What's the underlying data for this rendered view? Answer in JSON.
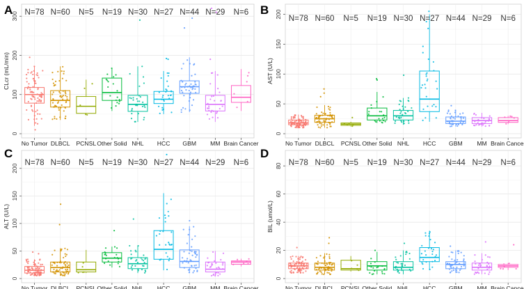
{
  "chart_data": [
    {
      "type": "boxplot",
      "panel": "A",
      "ylabel": "CLcr (mL/min)",
      "ylim": [
        0,
        320
      ],
      "yticks": [
        0,
        100,
        200,
        300
      ],
      "categories": [
        "No Tumor",
        "DLBCL",
        "PCNSL",
        "Other Solid",
        "NHL",
        "HCC",
        "GBM",
        "MM",
        "Brain Cancer"
      ],
      "n_labels": [
        "N=78",
        "N=60",
        "N=5",
        "N=19",
        "N=30",
        "N=27",
        "N=44",
        "N=29",
        "N=6"
      ],
      "n": [
        78,
        60,
        5,
        19,
        30,
        27,
        44,
        29,
        6
      ],
      "boxes": [
        {
          "min": 20,
          "q1": 78,
          "median": 100,
          "q3": 118,
          "max": 172
        },
        {
          "min": 35,
          "q1": 68,
          "median": 85,
          "q3": 110,
          "max": 172
        },
        {
          "min": 48,
          "q1": 52,
          "median": 70,
          "q3": 95,
          "max": 138
        },
        {
          "min": 58,
          "q1": 85,
          "median": 105,
          "q3": 142,
          "max": 168
        },
        {
          "min": 30,
          "q1": 57,
          "median": 75,
          "q3": 98,
          "max": 172
        },
        {
          "min": 50,
          "q1": 77,
          "median": 88,
          "q3": 108,
          "max": 160
        },
        {
          "min": 55,
          "q1": 103,
          "median": 120,
          "q3": 135,
          "max": 195
        },
        {
          "min": 30,
          "q1": 58,
          "median": 75,
          "q3": 98,
          "max": 160
        },
        {
          "min": 58,
          "q1": 80,
          "median": 93,
          "q3": 123,
          "max": 165
        }
      ],
      "outliers": [
        [
          10,
          195
        ],
        [],
        [],
        [],
        [
          290
        ],
        [
          190,
          192
        ],
        [
          270,
          295
        ],
        [
          310,
          320,
          190
        ],
        []
      ]
    },
    {
      "type": "boxplot",
      "panel": "B",
      "ylabel": "AST (U/L)",
      "ylim": [
        0,
        210
      ],
      "yticks": [
        0,
        50,
        100,
        150,
        200
      ],
      "categories": [
        "No Tumor",
        "DLBCL",
        "PCNSL",
        "Other Solid",
        "NHL",
        "HCC",
        "GBM",
        "MM",
        "Brain Cancer"
      ],
      "n_labels": [
        "N=78",
        "N=60",
        "N=5",
        "N=19",
        "N=30",
        "N=27",
        "N=44",
        "N=29",
        "N=6"
      ],
      "n": [
        78,
        60,
        5,
        19,
        30,
        27,
        44,
        29,
        6
      ],
      "boxes": [
        {
          "min": 10,
          "q1": 15,
          "median": 18,
          "q3": 23,
          "max": 32
        },
        {
          "min": 10,
          "q1": 19,
          "median": 25,
          "q3": 31,
          "max": 48
        },
        {
          "min": 12,
          "q1": 14,
          "median": 16,
          "q3": 18,
          "max": 20
        },
        {
          "min": 18,
          "q1": 23,
          "median": 30,
          "q3": 43,
          "max": 70
        },
        {
          "min": 15,
          "q1": 23,
          "median": 30,
          "q3": 39,
          "max": 60
        },
        {
          "min": 20,
          "q1": 37,
          "median": 58,
          "q3": 105,
          "max": 200
        },
        {
          "min": 12,
          "q1": 17,
          "median": 21,
          "q3": 28,
          "max": 40
        },
        {
          "min": 12,
          "q1": 17,
          "median": 22,
          "q3": 27,
          "max": 35
        },
        {
          "min": 16,
          "q1": 19,
          "median": 22,
          "q3": 27,
          "max": 30
        }
      ],
      "outliers": [
        [],
        [
          62,
          68,
          75
        ],
        [
          27
        ],
        [
          90,
          92
        ],
        [
          98
        ],
        [
          205
        ],
        [
          47
        ],
        [],
        []
      ]
    },
    {
      "type": "boxplot",
      "panel": "C",
      "ylabel": "ALT (U/L)",
      "ylim": [
        0,
        225
      ],
      "yticks": [
        0,
        50,
        100,
        150,
        200
      ],
      "categories": [
        "No Tumor",
        "DLBCL",
        "PCNSL",
        "Other Solid",
        "NHL",
        "HCC",
        "GBM",
        "MM",
        "Brain Cancer"
      ],
      "n_labels": [
        "N=78",
        "N=60",
        "N=5",
        "N=19",
        "N=30",
        "N=27",
        "N=44",
        "N=29",
        "N=6"
      ],
      "n": [
        78,
        60,
        5,
        19,
        30,
        27,
        44,
        29,
        6
      ],
      "boxes": [
        {
          "min": 5,
          "q1": 10,
          "median": 15,
          "q3": 22,
          "max": 35
        },
        {
          "min": 5,
          "q1": 12,
          "median": 20,
          "q3": 30,
          "max": 55
        },
        {
          "min": 10,
          "q1": 12,
          "median": 16,
          "q3": 30,
          "max": 52
        },
        {
          "min": 20,
          "q1": 30,
          "median": 37,
          "q3": 47,
          "max": 58
        },
        {
          "min": 10,
          "q1": 18,
          "median": 27,
          "q3": 38,
          "max": 60
        },
        {
          "min": 15,
          "q1": 35,
          "median": 53,
          "q3": 87,
          "max": 155
        },
        {
          "min": 10,
          "q1": 20,
          "median": 31,
          "q3": 52,
          "max": 95
        },
        {
          "min": 5,
          "q1": 12,
          "median": 17,
          "q3": 30,
          "max": 50
        },
        {
          "min": 22,
          "q1": 26,
          "median": 30,
          "q3": 32,
          "max": 36
        }
      ],
      "outliers": [
        [
          45,
          48
        ],
        [
          98,
          135
        ],
        [],
        [
          87
        ],
        [
          108
        ],
        [
          225
        ],
        [
          105
        ],
        [],
        []
      ]
    },
    {
      "type": "boxplot",
      "panel": "D",
      "ylabel": "BIL (umol/L)",
      "ylim": [
        0,
        88
      ],
      "yticks": [
        0,
        20,
        40,
        60,
        80
      ],
      "categories": [
        "No Tumor",
        "DLBCL",
        "PCNSL",
        "Other Solid",
        "NHL",
        "HCC",
        "GBM",
        "MM",
        "Brain Cancer"
      ],
      "n_labels": [
        "N=78",
        "N=60",
        "N=5",
        "N=19",
        "N=30",
        "N=27",
        "N=44",
        "N=29",
        "N=6"
      ],
      "n": [
        78,
        60,
        5,
        19,
        30,
        27,
        44,
        29,
        6
      ],
      "boxes": [
        {
          "min": 4,
          "q1": 7,
          "median": 9,
          "q3": 11,
          "max": 16
        },
        {
          "min": 3,
          "q1": 6,
          "median": 8,
          "q3": 11,
          "max": 18
        },
        {
          "min": 5,
          "q1": 6,
          "median": 7,
          "q3": 13,
          "max": 16
        },
        {
          "min": 3,
          "q1": 6,
          "median": 9,
          "q3": 12,
          "max": 19
        },
        {
          "min": 3,
          "q1": 6,
          "median": 8,
          "q3": 12,
          "max": 20
        },
        {
          "min": 6,
          "q1": 12,
          "median": 15,
          "q3": 22,
          "max": 34
        },
        {
          "min": 4,
          "q1": 7,
          "median": 10,
          "q3": 12,
          "max": 20
        },
        {
          "min": 3,
          "q1": 6,
          "median": 8,
          "q3": 11,
          "max": 18
        },
        {
          "min": 6,
          "q1": 8,
          "median": 9,
          "q3": 10,
          "max": 11
        }
      ],
      "outliers": [
        [
          22
        ],
        [
          25,
          29
        ],
        [],
        [
          20
        ],
        [
          25
        ],
        [],
        [
          23
        ],
        [
          26
        ],
        [
          24
        ]
      ]
    }
  ],
  "series_colors": [
    "#F8766D",
    "#D39200",
    "#93AA00",
    "#00BA38",
    "#00C19F",
    "#00B9E3",
    "#619CFF",
    "#DB72FB",
    "#FF61C3"
  ]
}
